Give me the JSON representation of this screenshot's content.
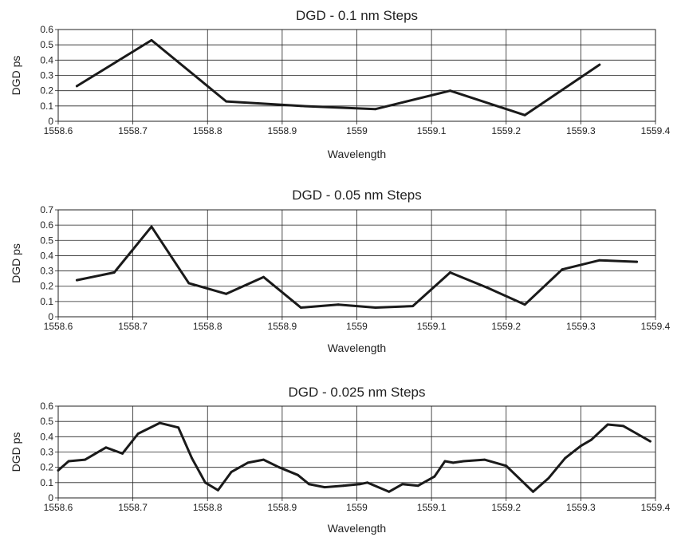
{
  "chart_data": [
    {
      "type": "line",
      "title": "DGD - 0.1 nm Steps",
      "xlabel": "Wavelength",
      "ylabel": "DGD ps",
      "xlim": [
        1558.6,
        1559.4
      ],
      "ylim": [
        0,
        0.6
      ],
      "x_ticks": [
        "1558.6",
        "1558.7",
        "1558.8",
        "1558.9",
        "1559",
        "1559.1",
        "1559.2",
        "1559.3",
        "1559.4"
      ],
      "y_ticks": [
        "0",
        "0.1",
        "0.2",
        "0.3",
        "0.4",
        "0.5",
        "0.6"
      ],
      "grid": true,
      "series": [
        {
          "x": [
            1558.625,
            1558.725,
            1558.825,
            1558.925,
            1559.025,
            1559.125,
            1559.225,
            1559.325
          ],
          "y": [
            0.23,
            0.53,
            0.13,
            0.1,
            0.08,
            0.2,
            0.04,
            0.37
          ]
        }
      ]
    },
    {
      "type": "line",
      "title": "DGD - 0.05 nm Steps",
      "xlabel": "Wavelength",
      "ylabel": "DGD ps",
      "xlim": [
        1558.6,
        1559.4
      ],
      "ylim": [
        0,
        0.7
      ],
      "x_ticks": [
        "1558.6",
        "1558.7",
        "1558.8",
        "1558.9",
        "1559",
        "1559.1",
        "1559.2",
        "1559.3",
        "1559.4"
      ],
      "y_ticks": [
        "0",
        "0.1",
        "0.2",
        "0.3",
        "0.4",
        "0.5",
        "0.6",
        "0.7"
      ],
      "grid": true,
      "series": [
        {
          "x": [
            1558.625,
            1558.675,
            1558.725,
            1558.775,
            1558.825,
            1558.875,
            1558.925,
            1558.975,
            1559.025,
            1559.075,
            1559.125,
            1559.175,
            1559.225,
            1559.275,
            1559.325,
            1559.375
          ],
          "y": [
            0.24,
            0.29,
            0.59,
            0.22,
            0.15,
            0.26,
            0.06,
            0.08,
            0.06,
            0.07,
            0.29,
            0.19,
            0.08,
            0.31,
            0.37,
            0.36
          ]
        }
      ]
    },
    {
      "type": "line",
      "title": "DGD - 0.025 nm Steps",
      "xlabel": "Wavelength",
      "ylabel": "DGD ps",
      "xlim": [
        1558.6,
        1559.4
      ],
      "ylim": [
        0,
        0.6
      ],
      "x_ticks": [
        "1558.6",
        "1558.7",
        "1558.8",
        "1558.9",
        "1559",
        "1559.1",
        "1559.2",
        "1559.3",
        "1559.4"
      ],
      "y_ticks": [
        "0",
        "0.1",
        "0.2",
        "0.3",
        "0.4",
        "0.5",
        "0.6"
      ],
      "grid": true,
      "series": [
        {
          "x": [
            1558.6,
            1558.614,
            1558.636,
            1558.664,
            1558.686,
            1558.707,
            1558.736,
            1558.761,
            1558.779,
            1558.797,
            1558.814,
            1558.832,
            1558.854,
            1558.875,
            1558.896,
            1558.921,
            1558.936,
            1558.957,
            1558.982,
            1559.004,
            1559.014,
            1559.043,
            1559.061,
            1559.082,
            1559.104,
            1559.118,
            1559.129,
            1559.143,
            1559.171,
            1559.2,
            1559.236,
            1559.257,
            1559.279,
            1559.3,
            1559.314,
            1559.336,
            1559.357,
            1559.375,
            1559.393
          ],
          "y": [
            0.18,
            0.24,
            0.25,
            0.33,
            0.29,
            0.42,
            0.49,
            0.46,
            0.26,
            0.1,
            0.05,
            0.17,
            0.23,
            0.25,
            0.2,
            0.15,
            0.09,
            0.07,
            0.08,
            0.09,
            0.1,
            0.04,
            0.09,
            0.08,
            0.14,
            0.24,
            0.23,
            0.24,
            0.25,
            0.21,
            0.04,
            0.13,
            0.26,
            0.34,
            0.38,
            0.48,
            0.47,
            0.42,
            0.37
          ]
        }
      ]
    }
  ]
}
